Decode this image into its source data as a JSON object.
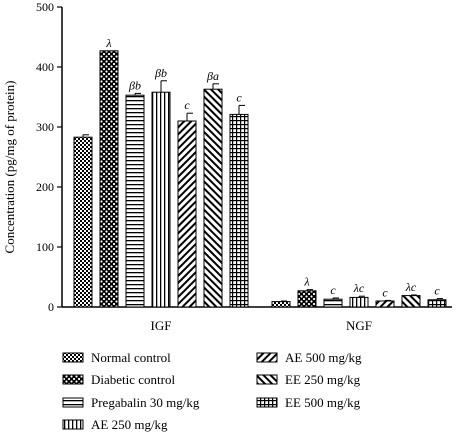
{
  "chart_data": {
    "type": "bar",
    "ylabel": "Concentration (pg/mg of protein)",
    "xlabel": "",
    "ylim": [
      0,
      500
    ],
    "yticks": [
      0,
      100,
      200,
      300,
      400,
      500
    ],
    "categories": [
      "IGF",
      "NGF"
    ],
    "legend_position": "bottom",
    "series": [
      {
        "name": "Normal control",
        "pattern": "checker",
        "values": [
          283,
          9
        ],
        "errors": [
          4,
          1
        ],
        "labels": [
          "",
          ""
        ]
      },
      {
        "name": "Diabetic control",
        "pattern": "dots",
        "values": [
          427,
          27
        ],
        "errors": [
          0,
          2
        ],
        "labels": [
          "λ",
          "λ"
        ]
      },
      {
        "name": "Pregabalin 30 mg/kg",
        "pattern": "hlines",
        "values": [
          353,
          13
        ],
        "errors": [
          3,
          2
        ],
        "labels": [
          "βb",
          "c"
        ]
      },
      {
        "name": "AE 250 mg/kg",
        "pattern": "vlines",
        "values": [
          358,
          16
        ],
        "errors": [
          19,
          2
        ],
        "labels": [
          "βb",
          "λc"
        ]
      },
      {
        "name": "AE 500 mg/kg",
        "pattern": "diag-right",
        "values": [
          310,
          10
        ],
        "errors": [
          13,
          1
        ],
        "labels": [
          "c",
          "c"
        ]
      },
      {
        "name": "EE 250 mg/kg",
        "pattern": "diag-left",
        "values": [
          363,
          19
        ],
        "errors": [
          9,
          1
        ],
        "labels": [
          "βa",
          "λc"
        ]
      },
      {
        "name": "EE 500 mg/kg",
        "pattern": "grid",
        "values": [
          321,
          12
        ],
        "errors": [
          15,
          2
        ],
        "labels": [
          "c",
          "c"
        ]
      }
    ]
  }
}
